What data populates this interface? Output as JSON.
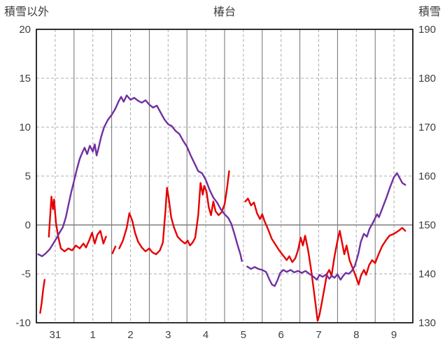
{
  "header": {
    "left_axis_title": "積雪以外",
    "title": "椿台",
    "right_axis_title": "積雪"
  },
  "chart_data": {
    "type": "line",
    "title": "椿台",
    "legend": "none",
    "left_axis": {
      "label": "積雪以外",
      "min": -10,
      "max": 20,
      "ticks": [
        "20",
        "15",
        "10",
        "5",
        "0",
        "-5",
        "-10"
      ],
      "tick_values": [
        20,
        15,
        10,
        5,
        0,
        -5,
        -10
      ]
    },
    "right_axis": {
      "label": "積雪",
      "min": 130,
      "max": 190,
      "ticks": [
        "190",
        "180",
        "170",
        "160",
        "150",
        "140",
        "130"
      ],
      "tick_values": [
        190,
        180,
        170,
        160,
        150,
        140,
        130
      ]
    },
    "x_axis": {
      "min": 0,
      "max": 10,
      "labels": [
        "31",
        "1",
        "2",
        "3",
        "4",
        "5",
        "6",
        "7",
        "8",
        "9"
      ],
      "label_positions": [
        0.5,
        1.5,
        2.5,
        3.5,
        4.5,
        5.5,
        6.5,
        7.5,
        8.5,
        9.5
      ]
    },
    "grid": {
      "h_dashed": [
        15,
        10,
        5,
        -5
      ],
      "h_solid": [
        0
      ],
      "v_solid": [
        1,
        2,
        3,
        4,
        5,
        6,
        7,
        8,
        9
      ],
      "v_dashed": [
        0.5,
        1.5,
        2.5,
        3.5,
        4.5,
        5.5,
        6.5,
        7.5,
        8.5,
        9.5
      ]
    },
    "colors": {
      "red_series": "#e60000",
      "purple_series": "#7030a0",
      "grid_dashed": "#adadad",
      "grid_solid": "#6f6f6f",
      "zero_line": "#7f7f7f",
      "frame": "#1a1a1a",
      "text": "#404040"
    },
    "series": [
      {
        "name": "series-red",
        "axis": "left",
        "color": "#e60000",
        "points": [
          [
            0.1,
            -9.0
          ],
          [
            0.14,
            -8.0
          ],
          [
            0.18,
            -6.6
          ],
          [
            0.22,
            -5.6
          ],
          null,
          [
            0.33,
            -1.2
          ],
          [
            0.36,
            0.6
          ],
          [
            0.4,
            2.9
          ],
          [
            0.44,
            1.6
          ],
          [
            0.47,
            2.6
          ],
          [
            0.52,
            0.2
          ],
          [
            0.58,
            -1.2
          ],
          [
            0.65,
            -2.4
          ],
          [
            0.75,
            -2.7
          ],
          [
            0.85,
            -2.4
          ],
          [
            0.95,
            -2.6
          ],
          [
            1.05,
            -2.1
          ],
          [
            1.15,
            -2.4
          ],
          [
            1.25,
            -1.9
          ],
          [
            1.32,
            -2.3
          ],
          [
            1.4,
            -1.6
          ],
          [
            1.48,
            -0.8
          ],
          [
            1.55,
            -1.9
          ],
          [
            1.62,
            -1.0
          ],
          [
            1.7,
            -0.6
          ],
          [
            1.78,
            -1.9
          ],
          [
            1.85,
            -1.2
          ],
          null,
          [
            2.02,
            -2.9
          ],
          [
            2.1,
            -2.2
          ],
          null,
          [
            2.2,
            -2.4
          ],
          [
            2.3,
            -1.6
          ],
          [
            2.4,
            -0.3
          ],
          [
            2.47,
            1.2
          ],
          [
            2.55,
            0.4
          ],
          [
            2.62,
            -0.8
          ],
          [
            2.7,
            -1.7
          ],
          [
            2.8,
            -2.3
          ],
          [
            2.9,
            -2.7
          ],
          [
            3.0,
            -2.4
          ],
          [
            3.08,
            -2.8
          ],
          [
            3.18,
            -3.0
          ],
          [
            3.28,
            -2.6
          ],
          [
            3.36,
            -1.8
          ],
          [
            3.43,
            1.5
          ],
          [
            3.47,
            3.8
          ],
          [
            3.52,
            2.6
          ],
          [
            3.58,
            0.8
          ],
          [
            3.65,
            -0.2
          ],
          [
            3.75,
            -1.2
          ],
          [
            3.85,
            -1.6
          ],
          [
            3.95,
            -1.9
          ],
          [
            4.02,
            -1.6
          ],
          [
            4.08,
            -2.1
          ],
          [
            4.15,
            -1.8
          ],
          [
            4.22,
            -1.3
          ],
          [
            4.3,
            1.0
          ],
          [
            4.36,
            4.3
          ],
          [
            4.42,
            3.1
          ],
          [
            4.46,
            4.0
          ],
          [
            4.52,
            3.4
          ],
          [
            4.58,
            1.8
          ],
          [
            4.64,
            1.0
          ],
          [
            4.7,
            2.4
          ],
          [
            4.76,
            1.4
          ],
          [
            4.84,
            1.0
          ],
          [
            4.92,
            1.3
          ],
          [
            5.0,
            2.1
          ],
          [
            5.06,
            3.6
          ],
          [
            5.12,
            5.5
          ],
          null,
          [
            5.55,
            2.4
          ],
          [
            5.62,
            2.7
          ],
          [
            5.7,
            2.0
          ],
          [
            5.78,
            2.3
          ],
          [
            5.86,
            1.2
          ],
          [
            5.94,
            0.6
          ],
          [
            6.0,
            1.1
          ],
          [
            6.06,
            0.4
          ],
          [
            6.15,
            -0.4
          ],
          [
            6.25,
            -1.4
          ],
          [
            6.35,
            -2.0
          ],
          [
            6.45,
            -2.6
          ],
          [
            6.55,
            -3.1
          ],
          [
            6.65,
            -3.6
          ],
          [
            6.72,
            -3.2
          ],
          [
            6.8,
            -3.8
          ],
          [
            6.88,
            -3.4
          ],
          [
            6.95,
            -2.6
          ],
          [
            7.02,
            -1.3
          ],
          [
            7.08,
            -2.1
          ],
          [
            7.14,
            -1.1
          ],
          [
            7.22,
            -2.6
          ],
          [
            7.3,
            -4.6
          ],
          [
            7.36,
            -6.4
          ],
          [
            7.42,
            -8.2
          ],
          [
            7.47,
            -9.8
          ],
          [
            7.52,
            -9.2
          ],
          [
            7.58,
            -8.0
          ],
          [
            7.65,
            -6.5
          ],
          [
            7.72,
            -5.0
          ],
          [
            7.78,
            -4.6
          ],
          [
            7.84,
            -5.2
          ],
          [
            7.92,
            -3.2
          ],
          [
            8.0,
            -1.6
          ],
          [
            8.06,
            -0.6
          ],
          [
            8.12,
            -1.8
          ],
          [
            8.18,
            -3.0
          ],
          [
            8.24,
            -2.1
          ],
          [
            8.32,
            -3.6
          ],
          [
            8.42,
            -4.6
          ],
          [
            8.5,
            -5.4
          ],
          [
            8.56,
            -6.1
          ],
          [
            8.62,
            -5.2
          ],
          [
            8.7,
            -4.6
          ],
          [
            8.76,
            -5.1
          ],
          [
            8.84,
            -4.1
          ],
          [
            8.92,
            -3.6
          ],
          [
            9.0,
            -3.9
          ],
          [
            9.08,
            -3.1
          ],
          [
            9.18,
            -2.2
          ],
          [
            9.28,
            -1.6
          ],
          [
            9.38,
            -1.1
          ],
          [
            9.5,
            -0.9
          ],
          [
            9.62,
            -0.6
          ],
          [
            9.72,
            -0.3
          ],
          [
            9.8,
            -0.6
          ]
        ]
      },
      {
        "name": "series-purple",
        "axis": "right",
        "color": "#7030a0",
        "points": [
          [
            0.05,
            144.0
          ],
          [
            0.15,
            143.6
          ],
          [
            0.25,
            144.2
          ],
          [
            0.35,
            145.0
          ],
          [
            0.45,
            146.2
          ],
          [
            0.55,
            147.5
          ],
          [
            0.62,
            148.5
          ],
          [
            0.7,
            149.5
          ],
          [
            0.78,
            151.5
          ],
          [
            0.85,
            154.0
          ],
          [
            0.92,
            156.5
          ],
          [
            1.0,
            159.0
          ],
          [
            1.08,
            161.5
          ],
          [
            1.15,
            163.5
          ],
          [
            1.22,
            164.8
          ],
          [
            1.28,
            165.8
          ],
          [
            1.35,
            164.5
          ],
          [
            1.42,
            166.2
          ],
          [
            1.5,
            165.0
          ],
          [
            1.55,
            166.5
          ],
          [
            1.6,
            164.2
          ],
          [
            1.66,
            166.0
          ],
          [
            1.72,
            168.0
          ],
          [
            1.8,
            170.0
          ],
          [
            1.9,
            171.5
          ],
          [
            2.0,
            172.5
          ],
          [
            2.1,
            173.8
          ],
          [
            2.18,
            175.2
          ],
          [
            2.25,
            176.2
          ],
          [
            2.32,
            175.2
          ],
          [
            2.4,
            176.5
          ],
          [
            2.5,
            175.6
          ],
          [
            2.6,
            176.0
          ],
          [
            2.7,
            175.4
          ],
          [
            2.8,
            175.0
          ],
          [
            2.9,
            175.5
          ],
          [
            3.0,
            174.6
          ],
          [
            3.1,
            174.0
          ],
          [
            3.2,
            174.4
          ],
          [
            3.3,
            173.0
          ],
          [
            3.4,
            171.6
          ],
          [
            3.5,
            170.6
          ],
          [
            3.6,
            170.2
          ],
          [
            3.7,
            169.2
          ],
          [
            3.8,
            168.6
          ],
          [
            3.9,
            167.2
          ],
          [
            4.0,
            166.0
          ],
          [
            4.1,
            164.2
          ],
          [
            4.2,
            162.6
          ],
          [
            4.3,
            161.0
          ],
          [
            4.4,
            160.6
          ],
          [
            4.5,
            159.2
          ],
          [
            4.6,
            157.2
          ],
          [
            4.7,
            155.6
          ],
          [
            4.8,
            154.6
          ],
          [
            4.9,
            153.2
          ],
          [
            5.0,
            152.2
          ],
          [
            5.1,
            151.4
          ],
          [
            5.18,
            150.2
          ],
          [
            5.26,
            148.2
          ],
          [
            5.34,
            146.0
          ],
          [
            5.42,
            144.0
          ],
          [
            5.46,
            142.6
          ],
          null,
          [
            5.6,
            141.5
          ],
          [
            5.7,
            141.0
          ],
          [
            5.8,
            141.4
          ],
          [
            5.9,
            141.0
          ],
          [
            6.0,
            140.8
          ],
          [
            6.1,
            140.4
          ],
          [
            6.18,
            139.0
          ],
          [
            6.26,
            137.8
          ],
          [
            6.33,
            137.5
          ],
          [
            6.4,
            138.6
          ],
          [
            6.48,
            140.2
          ],
          [
            6.56,
            140.8
          ],
          [
            6.65,
            140.4
          ],
          [
            6.75,
            140.8
          ],
          [
            6.85,
            140.3
          ],
          [
            6.95,
            140.6
          ],
          [
            7.05,
            140.2
          ],
          [
            7.15,
            140.6
          ],
          [
            7.25,
            140.0
          ],
          [
            7.35,
            139.5
          ],
          [
            7.45,
            138.8
          ],
          [
            7.52,
            139.8
          ],
          [
            7.6,
            139.4
          ],
          [
            7.7,
            139.9
          ],
          [
            7.78,
            139.0
          ],
          [
            7.85,
            139.6
          ],
          [
            7.92,
            139.2
          ],
          [
            8.0,
            139.9
          ],
          [
            8.08,
            138.8
          ],
          [
            8.15,
            139.6
          ],
          [
            8.22,
            140.2
          ],
          [
            8.3,
            140.0
          ],
          [
            8.38,
            140.6
          ],
          [
            8.46,
            141.6
          ],
          [
            8.55,
            144.0
          ],
          [
            8.62,
            146.6
          ],
          [
            8.7,
            148.2
          ],
          [
            8.78,
            147.6
          ],
          [
            8.85,
            149.2
          ],
          [
            8.95,
            150.6
          ],
          [
            9.05,
            152.2
          ],
          [
            9.1,
            151.6
          ],
          [
            9.2,
            153.6
          ],
          [
            9.3,
            155.6
          ],
          [
            9.4,
            157.8
          ],
          [
            9.5,
            159.8
          ],
          [
            9.58,
            160.6
          ],
          [
            9.65,
            159.6
          ],
          [
            9.72,
            158.6
          ],
          [
            9.8,
            158.2
          ]
        ]
      }
    ]
  }
}
